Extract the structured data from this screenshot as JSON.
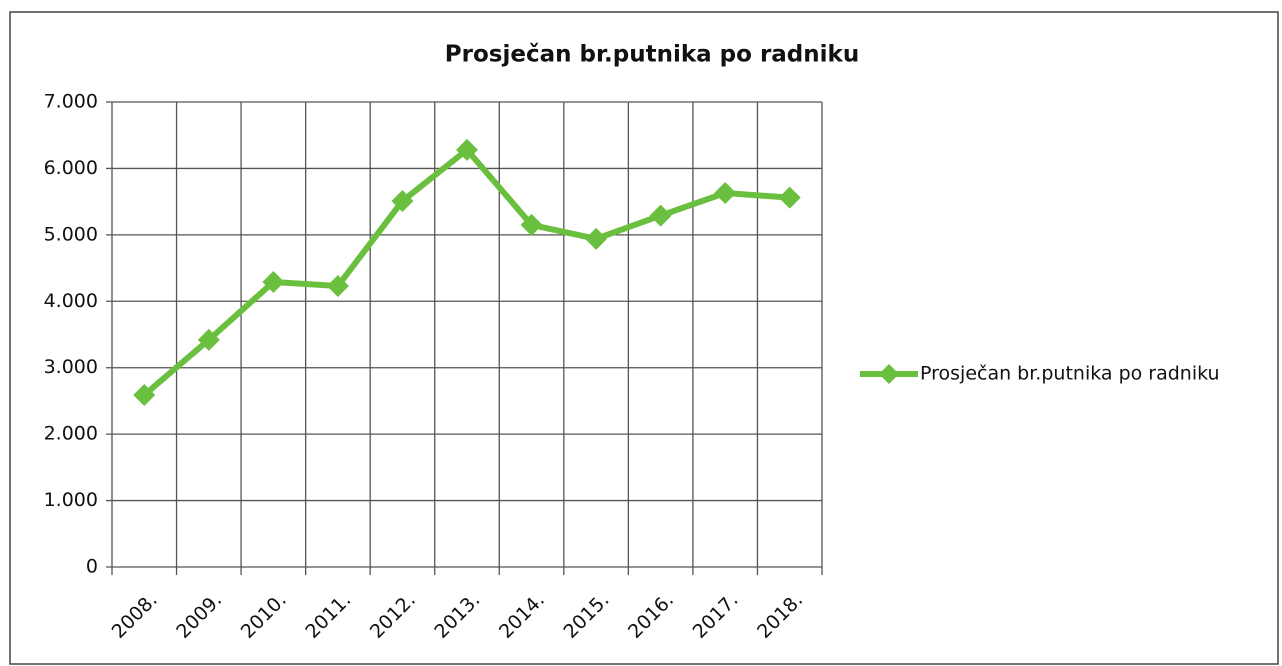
{
  "chart_data": {
    "type": "line",
    "title": "Prosječan br.putnika po radniku",
    "categories": [
      "2008.",
      "2009.",
      "2010.",
      "2011.",
      "2012.",
      "2013.",
      "2014.",
      "2015.",
      "2016.",
      "2017.",
      "2018."
    ],
    "series": [
      {
        "name": "Prosječan br.putnika po radniku",
        "color": "#6bbf3f",
        "values": [
          2590,
          3420,
          4290,
          4230,
          5510,
          6280,
          5150,
          4940,
          5290,
          5630,
          5560
        ]
      }
    ],
    "ylim": [
      0,
      7000
    ],
    "yticks": [
      0,
      {
        "value": 1000,
        "label": "1.000"
      },
      {
        "value": 2000,
        "label": "2.000"
      },
      {
        "value": 3000,
        "label": "3.000"
      },
      {
        "value": 4000,
        "label": "4.000"
      },
      {
        "value": 5000,
        "label": "5.000"
      },
      {
        "value": 6000,
        "label": "6.000"
      },
      {
        "value": 7000,
        "label": "7.000"
      }
    ],
    "grid": true,
    "legend": "right"
  }
}
